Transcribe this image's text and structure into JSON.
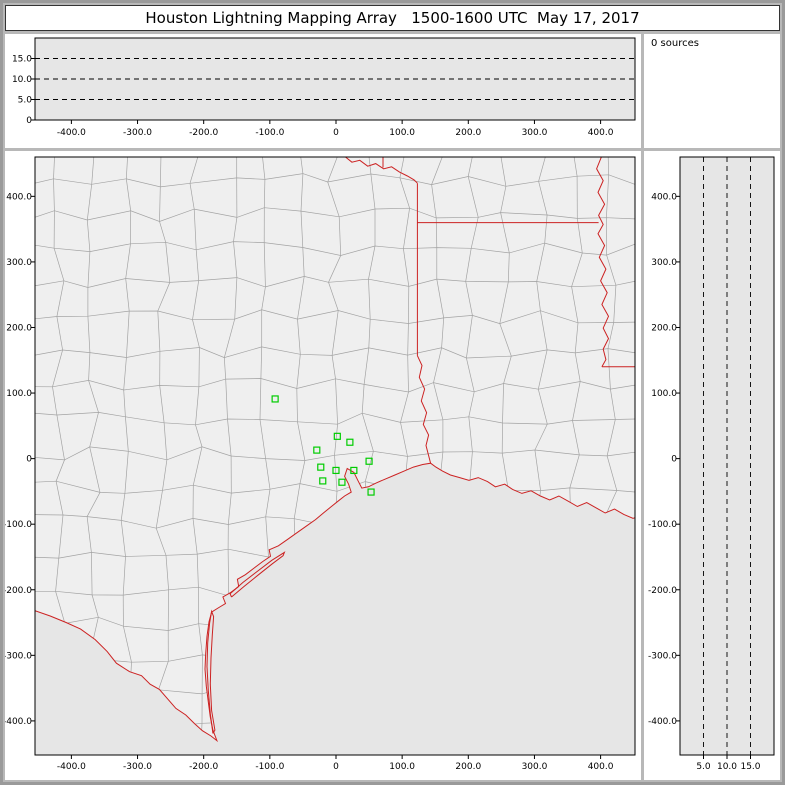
{
  "title": "Houston Lightning Mapping Array   1500-1600 UTC  May 17, 2017",
  "panels": {
    "histogram": {
      "label": "0 sources"
    }
  },
  "axes": {
    "ew": {
      "tick_labels": [
        "-400.0",
        "-300.0",
        "-200.0",
        "-100.0",
        "0",
        "100.0",
        "200.0",
        "300.0",
        "400.0"
      ],
      "tick_values": [
        -400,
        -300,
        -200,
        -100,
        0,
        100,
        200,
        300,
        400
      ],
      "range_km": [
        -455,
        452
      ]
    },
    "ns": {
      "tick_labels": [
        "400.0",
        "300.0",
        "200.0",
        "100.0",
        "0",
        "-100.0",
        "-200.0",
        "-300.0",
        "-400.0"
      ],
      "tick_values": [
        400,
        300,
        200,
        100,
        0,
        -100,
        -200,
        -300,
        -400
      ],
      "range_km": [
        -452,
        460
      ]
    },
    "alt": {
      "tick_labels": [
        "0",
        "5.0",
        "10.0",
        "15.0"
      ],
      "tick_values": [
        0,
        5,
        10,
        15
      ],
      "reference_lines": [
        5,
        10,
        15
      ],
      "range_km": [
        0,
        20
      ]
    }
  },
  "stations_km": [
    [
      -92,
      91
    ],
    [
      2,
      34
    ],
    [
      21,
      25
    ],
    [
      -29,
      13
    ],
    [
      -23,
      -13
    ],
    [
      0,
      -18
    ],
    [
      -20,
      -34
    ],
    [
      9,
      -36
    ],
    [
      27,
      -18
    ],
    [
      50,
      -4
    ],
    [
      53,
      -51
    ]
  ],
  "basemap": {
    "rio_grande_km": [
      [
        -455,
        -232
      ],
      [
        -432,
        -240
      ],
      [
        -408,
        -250
      ],
      [
        -386,
        -260
      ],
      [
        -364,
        -276
      ],
      [
        -346,
        -294
      ],
      [
        -332,
        -312
      ],
      [
        -312,
        -325
      ],
      [
        -294,
        -331
      ],
      [
        -281,
        -344
      ],
      [
        -267,
        -352
      ],
      [
        -254,
        -367
      ],
      [
        -242,
        -381
      ],
      [
        -227,
        -391
      ],
      [
        -214,
        -404
      ],
      [
        -202,
        -415
      ],
      [
        -189,
        -423
      ],
      [
        -180,
        -430
      ]
    ],
    "coast_km": [
      [
        -180,
        -430
      ],
      [
        -186,
        -414
      ],
      [
        -190,
        -394
      ],
      [
        -193,
        -371
      ],
      [
        -196,
        -347
      ],
      [
        -198,
        -321
      ],
      [
        -197,
        -297
      ],
      [
        -195,
        -271
      ],
      [
        -192,
        -249
      ],
      [
        -188,
        -234
      ],
      [
        -177,
        -227
      ],
      [
        -167,
        -221
      ],
      [
        -171,
        -211
      ],
      [
        -159,
        -204
      ],
      [
        -147,
        -195
      ],
      [
        -149,
        -184
      ],
      [
        -137,
        -177
      ],
      [
        -124,
        -167
      ],
      [
        -111,
        -157
      ],
      [
        -99,
        -149
      ],
      [
        -101,
        -139
      ],
      [
        -87,
        -133
      ],
      [
        -73,
        -123
      ],
      [
        -59,
        -113
      ],
      [
        -45,
        -103
      ],
      [
        -31,
        -93
      ],
      [
        -19,
        -83
      ],
      [
        -7,
        -73
      ],
      [
        3,
        -65
      ],
      [
        13,
        -57
      ],
      [
        23,
        -51
      ],
      [
        19,
        -39
      ],
      [
        13,
        -27
      ],
      [
        17,
        -15
      ],
      [
        27,
        -21
      ],
      [
        33,
        -33
      ],
      [
        39,
        -45
      ],
      [
        49,
        -43
      ],
      [
        61,
        -37
      ],
      [
        75,
        -31
      ],
      [
        89,
        -25
      ],
      [
        103,
        -19
      ],
      [
        117,
        -13
      ],
      [
        131,
        -9
      ],
      [
        143,
        -7
      ],
      [
        151,
        -13
      ],
      [
        161,
        -19
      ],
      [
        173,
        -25
      ],
      [
        187,
        -29
      ],
      [
        201,
        -33
      ],
      [
        215,
        -29
      ],
      [
        229,
        -35
      ],
      [
        241,
        -43
      ],
      [
        255,
        -39
      ],
      [
        267,
        -47
      ],
      [
        281,
        -53
      ],
      [
        295,
        -49
      ],
      [
        309,
        -57
      ],
      [
        323,
        -63
      ],
      [
        337,
        -57
      ],
      [
        351,
        -65
      ],
      [
        365,
        -73
      ],
      [
        379,
        -67
      ],
      [
        393,
        -75
      ],
      [
        407,
        -83
      ],
      [
        421,
        -77
      ],
      [
        435,
        -85
      ],
      [
        449,
        -91
      ],
      [
        456,
        -89
      ]
    ],
    "islands_km": [
      [
        [
          -186,
          -419
        ],
        [
          -190,
          -389
        ],
        [
          -193,
          -354
        ],
        [
          -195,
          -317
        ],
        [
          -194,
          -281
        ],
        [
          -191,
          -251
        ],
        [
          -188,
          -233
        ],
        [
          -185,
          -241
        ],
        [
          -187,
          -269
        ],
        [
          -189,
          -304
        ],
        [
          -190,
          -344
        ],
        [
          -188,
          -384
        ],
        [
          -183,
          -414
        ],
        [
          -186,
          -419
        ]
      ],
      [
        [
          -158,
          -211
        ],
        [
          -139,
          -195
        ],
        [
          -117,
          -177
        ],
        [
          -97,
          -161
        ],
        [
          -80,
          -148
        ],
        [
          -78,
          -143
        ],
        [
          -97,
          -155
        ],
        [
          -119,
          -172
        ],
        [
          -141,
          -189
        ],
        [
          -160,
          -206
        ],
        [
          -158,
          -211
        ]
      ]
    ],
    "state_lines_km": [
      [
        [
          12,
          462
        ],
        [
          24,
          452
        ],
        [
          36,
          455
        ],
        [
          48,
          446
        ],
        [
          60,
          450
        ],
        [
          72,
          442
        ],
        [
          84,
          445
        ],
        [
          96,
          437
        ],
        [
          108,
          431
        ],
        [
          118,
          425
        ],
        [
          123,
          420
        ]
      ],
      [
        [
          71,
          462
        ],
        [
          71,
          444
        ]
      ],
      [
        [
          123,
          420
        ],
        [
          123,
          157
        ]
      ],
      [
        [
          123,
          157
        ],
        [
          130,
          142
        ],
        [
          126,
          124
        ],
        [
          134,
          106
        ],
        [
          129,
          88
        ],
        [
          137,
          70
        ],
        [
          132,
          52
        ],
        [
          140,
          36
        ],
        [
          136,
          20
        ],
        [
          143,
          -7
        ]
      ],
      [
        [
          123,
          360
        ],
        [
          397,
          360
        ]
      ],
      [
        [
          402,
          462
        ],
        [
          394,
          442
        ],
        [
          404,
          424
        ],
        [
          396,
          406
        ],
        [
          406,
          388
        ],
        [
          397,
          371
        ],
        [
          404,
          357
        ],
        [
          396,
          343
        ],
        [
          406,
          325
        ],
        [
          398,
          307
        ],
        [
          408,
          289
        ],
        [
          400,
          271
        ],
        [
          410,
          253
        ],
        [
          402,
          235
        ],
        [
          412,
          217
        ],
        [
          404,
          199
        ],
        [
          412,
          183
        ],
        [
          404,
          167
        ],
        [
          408,
          151
        ],
        [
          402,
          140
        ]
      ],
      [
        [
          402,
          140
        ],
        [
          456,
          140
        ]
      ]
    ]
  },
  "colors": {
    "window_frame": "#9a9a9a",
    "window_bg": "#b8b8b8",
    "panel_bg": "#ffffff",
    "plot_bg": "#e6e6e6",
    "land_fill": "#efefef",
    "county_line": "#a3a3a3",
    "state_line": "#cc2222",
    "station": "#00cc00",
    "reference_line": "#000000",
    "text": "#000000"
  },
  "chart_data": [
    {
      "type": "scatter",
      "panel": "top-altitude-vs-east-west",
      "x": [],
      "y": [],
      "xlim": [
        -455,
        452
      ],
      "ylim": [
        0,
        20
      ],
      "xticks": [
        -400,
        -300,
        -200,
        -100,
        0,
        100,
        200,
        300,
        400
      ],
      "yticks": [
        0,
        5,
        10,
        15
      ],
      "reference_lines_y": [
        5,
        10,
        15
      ],
      "note": "0 sources - no lightning points plotted"
    },
    {
      "type": "scatter",
      "panel": "plan-view-map",
      "xlim": [
        -455,
        452
      ],
      "ylim": [
        -452,
        460
      ],
      "xticks": [
        -400,
        -300,
        -200,
        -100,
        0,
        100,
        200,
        300,
        400
      ],
      "yticks": [
        400,
        300,
        200,
        100,
        0,
        -100,
        -200,
        -300,
        -400
      ],
      "series": [
        {
          "name": "LMA station locations",
          "marker": "open green square",
          "points": [
            [
              -92,
              91
            ],
            [
              2,
              34
            ],
            [
              21,
              25
            ],
            [
              -29,
              13
            ],
            [
              -23,
              -13
            ],
            [
              0,
              -18
            ],
            [
              -20,
              -34
            ],
            [
              9,
              -36
            ],
            [
              27,
              -18
            ],
            [
              50,
              -4
            ],
            [
              53,
              -51
            ]
          ]
        }
      ],
      "background": "county map of Texas/Louisiana region with red state borders and coastline"
    },
    {
      "type": "scatter",
      "panel": "right-north-south-vs-altitude",
      "x": [],
      "y": [],
      "xlim": [
        0,
        20
      ],
      "ylim": [
        -452,
        460
      ],
      "xticks": [
        5,
        10,
        15
      ],
      "yticks": [
        400,
        300,
        200,
        100,
        0,
        -100,
        -200,
        -300,
        -400
      ],
      "reference_lines_x": [
        5,
        10,
        15
      ],
      "note": "0 sources - no lightning points plotted"
    },
    {
      "type": "histogram",
      "panel": "altitude-histogram",
      "label": "0 sources",
      "values": []
    }
  ]
}
